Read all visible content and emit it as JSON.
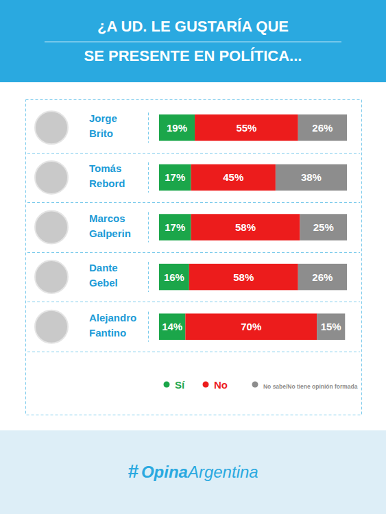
{
  "chart_data": {
    "type": "bar",
    "orientation": "horizontal",
    "stacked": true,
    "data_labels": true,
    "tick_labels": false,
    "grid": false,
    "title": "¿A UD. LE GUSTARÍA QUE\nSE PRESENTE EN POLÍTICA...",
    "categories": [
      "Jorge Brito",
      "Tomás Rebord",
      "Marcos Galperin",
      "Dante Gebel",
      "Alejandro Fantino"
    ],
    "xlim": [
      0,
      100
    ],
    "series": [
      {
        "name": "Sí",
        "color": "#1ba64a",
        "values": [
          19,
          17,
          17,
          16,
          14
        ],
        "value_labels": [
          "19%",
          "17%",
          "17%",
          "16%",
          "14%"
        ]
      },
      {
        "name": "No",
        "color": "#ec1c1c",
        "values": [
          55,
          45,
          58,
          58,
          70
        ],
        "value_labels": [
          "55%",
          "45%",
          "58%",
          "58%",
          "70%"
        ]
      },
      {
        "name": "No sabe/No tiene opinión formada",
        "color": "#8d8d8d",
        "values": [
          26,
          38,
          25,
          26,
          15
        ],
        "value_labels": [
          "26%",
          "38%",
          "25%",
          "26%",
          "15%"
        ]
      }
    ],
    "legend": "bottom",
    "source": [
      "#",
      "Opina",
      "Argentina"
    ]
  }
}
